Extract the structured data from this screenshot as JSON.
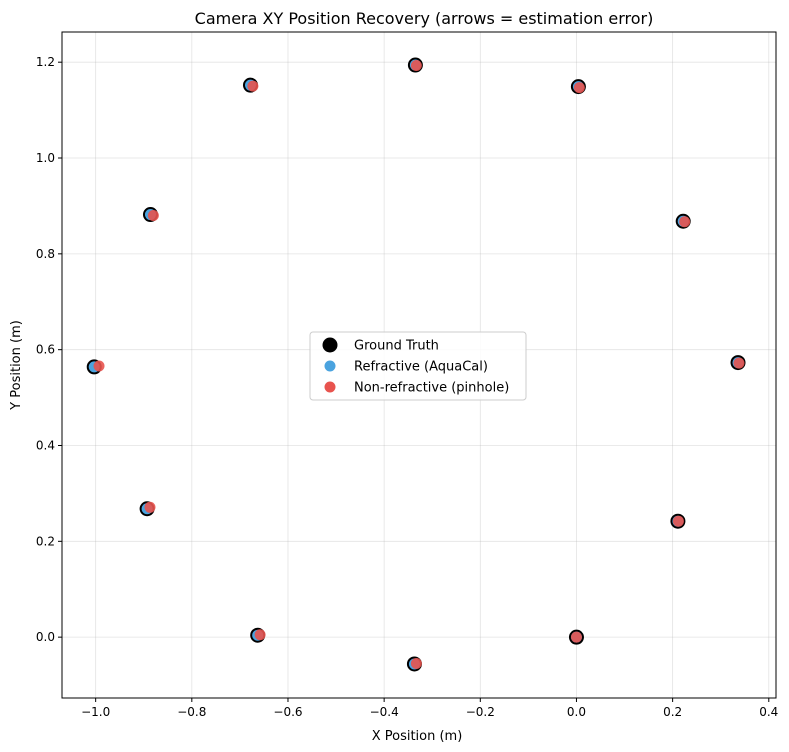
{
  "chart_data": {
    "type": "scatter",
    "title": "Camera XY Position Recovery (arrows = estimation error)",
    "xlabel": "X Position (m)",
    "ylabel": "Y Position (m)",
    "xlim": [
      -1.07,
      0.415
    ],
    "ylim": [
      -0.127,
      1.263
    ],
    "xticks": [
      -1.0,
      -0.8,
      -0.6,
      -0.4,
      -0.2,
      0.0,
      0.2,
      0.4
    ],
    "xtick_labels": [
      "−1.0",
      "−0.8",
      "−0.6",
      "−0.4",
      "−0.2",
      "0.0",
      "0.2",
      "0.4"
    ],
    "yticks": [
      0.0,
      0.2,
      0.4,
      0.6,
      0.8,
      1.0,
      1.2
    ],
    "ytick_labels": [
      "0.0",
      "0.2",
      "0.4",
      "0.6",
      "0.8",
      "1.0",
      "1.2"
    ],
    "grid": true,
    "legend_position": "center",
    "series": [
      {
        "name": "Ground Truth",
        "color": "#000000",
        "points": [
          [
            0.0,
            0.0
          ],
          [
            0.336,
            0.573
          ],
          [
            0.211,
            0.242
          ],
          [
            0.222,
            0.868
          ],
          [
            0.004,
            1.149
          ],
          [
            -0.335,
            1.194
          ],
          [
            -0.678,
            1.152
          ],
          [
            -0.886,
            0.882
          ],
          [
            -1.003,
            0.564
          ],
          [
            -0.893,
            0.268
          ],
          [
            -0.663,
            0.004
          ],
          [
            -0.337,
            -0.056
          ]
        ]
      },
      {
        "name": "Refractive (AquaCal)",
        "color": "#4aa3df",
        "points": [
          [
            0.0,
            0.0
          ],
          [
            0.336,
            0.573
          ],
          [
            0.211,
            0.242
          ],
          [
            0.222,
            0.868
          ],
          [
            0.004,
            1.149
          ],
          [
            -0.335,
            1.194
          ],
          [
            -0.678,
            1.152
          ],
          [
            -0.886,
            0.882
          ],
          [
            -1.003,
            0.564
          ],
          [
            -0.893,
            0.268
          ],
          [
            -0.663,
            0.004
          ],
          [
            -0.337,
            -0.056
          ]
        ]
      },
      {
        "name": "Non-refractive (pinhole)",
        "color": "#e8534e",
        "points": [
          [
            0.0,
            0.0
          ],
          [
            0.338,
            0.572
          ],
          [
            0.212,
            0.242
          ],
          [
            0.225,
            0.867
          ],
          [
            0.006,
            1.147
          ],
          [
            -0.333,
            1.193
          ],
          [
            -0.673,
            1.15
          ],
          [
            -0.88,
            0.88
          ],
          [
            -0.993,
            0.566
          ],
          [
            -0.887,
            0.271
          ],
          [
            -0.658,
            0.005
          ],
          [
            -0.333,
            -0.055
          ]
        ]
      }
    ]
  }
}
